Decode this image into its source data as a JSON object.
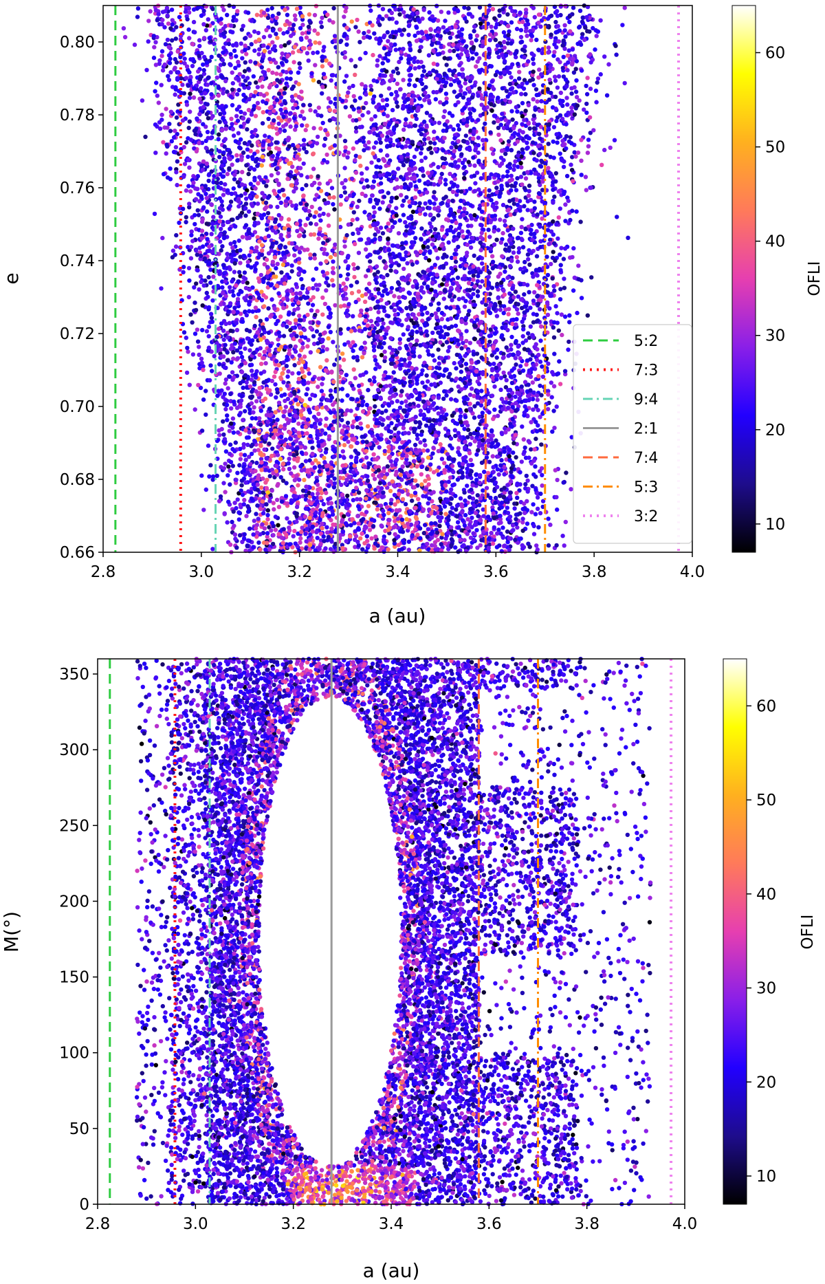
{
  "colors": {
    "resonances": {
      "5:2": "#2ecc40",
      "7:3": "#ff1a1a",
      "9:4": "#66d4b4",
      "2:1": "#9a9a9a",
      "7:4": "#ff6a3d",
      "5:3": "#ff8c00",
      "3:2": "#ee82ee"
    },
    "colormap": [
      "#000000",
      "#1e0c8c",
      "#2200ff",
      "#8a1fe8",
      "#e63fb0",
      "#ff7a5a",
      "#ffb01f",
      "#ffff00",
      "#ffffff"
    ]
  },
  "chart_data": [
    {
      "type": "scatter",
      "panel": "top",
      "xlabel": "a (au)",
      "ylabel": "e",
      "xlim": [
        2.8,
        4.0
      ],
      "ylim": [
        0.66,
        0.81
      ],
      "xticks": [
        "2.8",
        "3.0",
        "3.2",
        "3.4",
        "3.6",
        "3.8",
        "4.0"
      ],
      "yticks": [
        "0.66",
        "0.68",
        "0.70",
        "0.72",
        "0.74",
        "0.76",
        "0.78",
        "0.80"
      ],
      "colorbar": {
        "label": "OFLI",
        "range": [
          7,
          65
        ],
        "ticks": [
          "10",
          "20",
          "30",
          "40",
          "50",
          "60"
        ]
      },
      "resonances": [
        {
          "label": "5:2",
          "a": 2.825,
          "style": "dashed"
        },
        {
          "label": "7:3",
          "a": 2.958,
          "style": "dotted"
        },
        {
          "label": "9:4",
          "a": 3.029,
          "style": "dashdot"
        },
        {
          "label": "2:1",
          "a": 3.278,
          "style": "solid"
        },
        {
          "label": "7:4",
          "a": 3.579,
          "style": "dashed"
        },
        {
          "label": "5:3",
          "a": 3.7,
          "style": "dashdot"
        },
        {
          "label": "3:2",
          "a": 3.972,
          "style": "dotted"
        }
      ],
      "legend": [
        "5:2",
        "7:3",
        "9:4",
        "2:1",
        "7:4",
        "5:3",
        "3:2"
      ],
      "legend_position": "lower-right",
      "point_count": 9000
    },
    {
      "type": "scatter",
      "panel": "bottom",
      "xlabel": "a (au)",
      "ylabel": "M(°)",
      "xlim": [
        2.8,
        4.0
      ],
      "ylim": [
        0,
        360
      ],
      "xticks": [
        "2.8",
        "3.0",
        "3.2",
        "3.4",
        "3.6",
        "3.8",
        "4.0"
      ],
      "yticks": [
        "0",
        "50",
        "100",
        "150",
        "200",
        "250",
        "300",
        "350"
      ],
      "colorbar": {
        "label": "OFLI",
        "range": [
          7,
          65
        ],
        "ticks": [
          "10",
          "20",
          "30",
          "40",
          "50",
          "60"
        ]
      },
      "resonances": [
        {
          "label": "5:2",
          "a": 2.825,
          "style": "dashed"
        },
        {
          "label": "7:3",
          "a": 2.958,
          "style": "dotted"
        },
        {
          "label": "9:4",
          "a": 3.029,
          "style": "dashdot"
        },
        {
          "label": "2:1",
          "a": 3.278,
          "style": "solid"
        },
        {
          "label": "7:4",
          "a": 3.579,
          "style": "dashed"
        },
        {
          "label": "5:3",
          "a": 3.7,
          "style": "dashdot"
        },
        {
          "label": "3:2",
          "a": 3.972,
          "style": "dotted"
        }
      ],
      "island": {
        "center_a": 3.275,
        "center_M": 180,
        "half_width_a": 0.145,
        "half_height_M": 155
      },
      "point_count": 11000
    }
  ]
}
